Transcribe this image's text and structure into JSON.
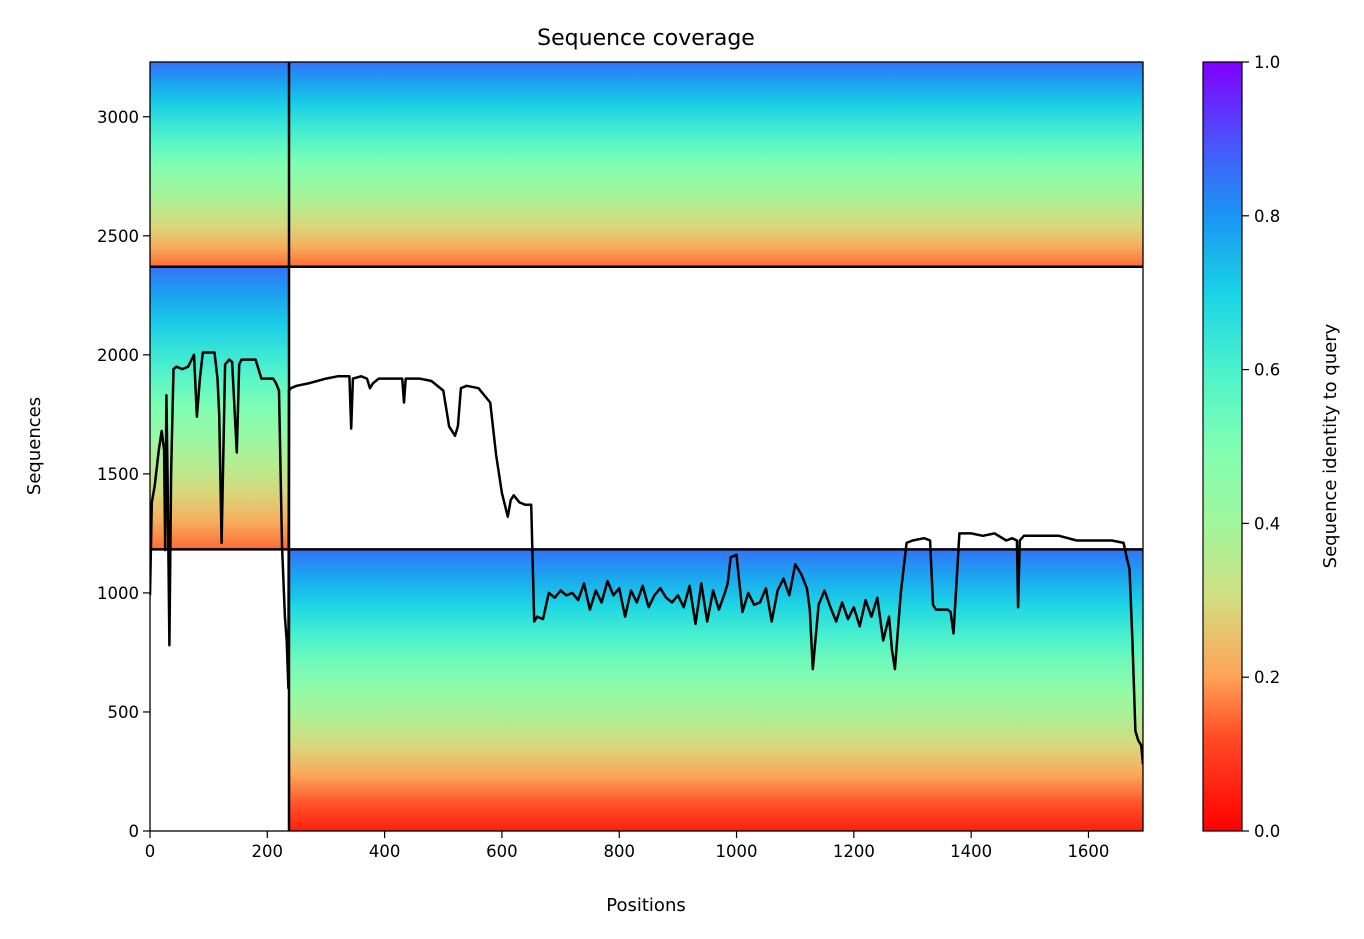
{
  "chart_data": {
    "type": "heatmap",
    "title": "Sequence coverage",
    "xlabel": "Positions",
    "ylabel": "Sequences",
    "xlim": [
      0,
      1693
    ],
    "ylim": [
      0,
      3230
    ],
    "xticks": [
      0,
      200,
      400,
      600,
      800,
      1000,
      1200,
      1400,
      1600
    ],
    "yticks": [
      0,
      500,
      1000,
      1500,
      2000,
      2500,
      3000
    ],
    "grid": false,
    "legend": "none",
    "colorbar": {
      "label": "Sequence identity to query",
      "range": [
        0.0,
        1.0
      ],
      "ticks": [
        0.0,
        0.2,
        0.4,
        0.6,
        0.8,
        1.0
      ],
      "tick_labels": [
        "0.0",
        "0.2",
        "0.4",
        "0.6",
        "0.8",
        "1.0"
      ],
      "colormap": "rainbow_r"
    },
    "chain_boundaries": {
      "x": [
        237
      ],
      "y": [
        1183,
        2370
      ]
    },
    "blocks": [
      {
        "x0": 0,
        "x1": 237,
        "y0": 1183,
        "y1": 2370,
        "id_top": 0.85,
        "id_bottom": 0.15
      },
      {
        "x0": 0,
        "x1": 237,
        "y0": 2370,
        "y1": 3230,
        "id_top": 0.85,
        "id_bottom": 0.15
      },
      {
        "x0": 237,
        "x1": 1693,
        "y0": 2370,
        "y1": 3230,
        "id_top": 0.85,
        "id_bottom": 0.15
      },
      {
        "x0": 237,
        "x1": 1693,
        "y0": 0,
        "y1": 1183,
        "id_top": 0.85,
        "id_bottom": 0.05
      }
    ],
    "coverage_line": {
      "x": [
        0,
        3,
        8,
        15,
        20,
        24,
        26,
        28,
        30,
        33,
        36,
        40,
        45,
        55,
        65,
        75,
        80,
        85,
        90,
        100,
        110,
        115,
        118,
        122,
        128,
        135,
        140,
        148,
        152,
        156,
        160,
        170,
        180,
        190,
        200,
        210,
        215,
        220,
        225,
        230,
        233,
        236,
        237,
        240,
        250,
        270,
        300,
        320,
        340,
        343,
        346,
        360,
        370,
        375,
        380,
        390,
        400,
        430,
        433,
        436,
        460,
        480,
        500,
        510,
        520,
        525,
        530,
        540,
        560,
        580,
        590,
        600,
        610,
        615,
        620,
        630,
        640,
        650,
        655,
        660,
        670,
        680,
        690,
        700,
        710,
        720,
        730,
        740,
        750,
        760,
        770,
        780,
        790,
        800,
        810,
        820,
        830,
        840,
        850,
        860,
        870,
        880,
        890,
        900,
        910,
        920,
        930,
        940,
        950,
        960,
        970,
        980,
        985,
        990,
        1000,
        1010,
        1020,
        1030,
        1040,
        1050,
        1060,
        1070,
        1080,
        1090,
        1100,
        1110,
        1120,
        1125,
        1130,
        1140,
        1150,
        1160,
        1170,
        1180,
        1190,
        1200,
        1210,
        1220,
        1230,
        1240,
        1250,
        1260,
        1265,
        1270,
        1280,
        1290,
        1300,
        1320,
        1330,
        1335,
        1340,
        1350,
        1360,
        1365,
        1370,
        1380,
        1400,
        1420,
        1440,
        1460,
        1470,
        1478,
        1480,
        1483,
        1490,
        1520,
        1550,
        1580,
        1610,
        1640,
        1660,
        1665,
        1670,
        1675,
        1680,
        1685,
        1690,
        1693
      ],
      "y": [
        990,
        1380,
        1450,
        1600,
        1680,
        1600,
        1180,
        1830,
        1480,
        780,
        1500,
        1940,
        1950,
        1940,
        1950,
        2000,
        1740,
        1900,
        2010,
        2010,
        2010,
        1900,
        1750,
        1210,
        1960,
        1980,
        1970,
        1590,
        1960,
        1980,
        1980,
        1980,
        1980,
        1900,
        1900,
        1900,
        1880,
        1850,
        1200,
        900,
        800,
        600,
        1850,
        1860,
        1870,
        1880,
        1900,
        1910,
        1910,
        1690,
        1900,
        1910,
        1900,
        1860,
        1880,
        1900,
        1900,
        1900,
        1800,
        1900,
        1900,
        1890,
        1850,
        1700,
        1660,
        1700,
        1860,
        1870,
        1860,
        1800,
        1580,
        1420,
        1320,
        1390,
        1410,
        1380,
        1370,
        1370,
        880,
        900,
        890,
        1000,
        980,
        1010,
        990,
        1000,
        970,
        1040,
        930,
        1010,
        960,
        1050,
        990,
        1020,
        900,
        1010,
        960,
        1030,
        940,
        990,
        1020,
        980,
        960,
        990,
        940,
        1030,
        870,
        1040,
        880,
        1010,
        930,
        1000,
        1040,
        1150,
        1160,
        920,
        1000,
        950,
        960,
        1020,
        880,
        1010,
        1060,
        990,
        1120,
        1080,
        1020,
        930,
        680,
        950,
        1010,
        940,
        880,
        960,
        890,
        940,
        860,
        970,
        900,
        980,
        800,
        900,
        760,
        680,
        1000,
        1210,
        1220,
        1230,
        1220,
        950,
        930,
        930,
        930,
        920,
        830,
        1250,
        1250,
        1240,
        1250,
        1220,
        1230,
        1220,
        940,
        1220,
        1240,
        1240,
        1240,
        1220,
        1220,
        1220,
        1210,
        1150,
        1100,
        800,
        420,
        380,
        360,
        280
      ]
    }
  }
}
